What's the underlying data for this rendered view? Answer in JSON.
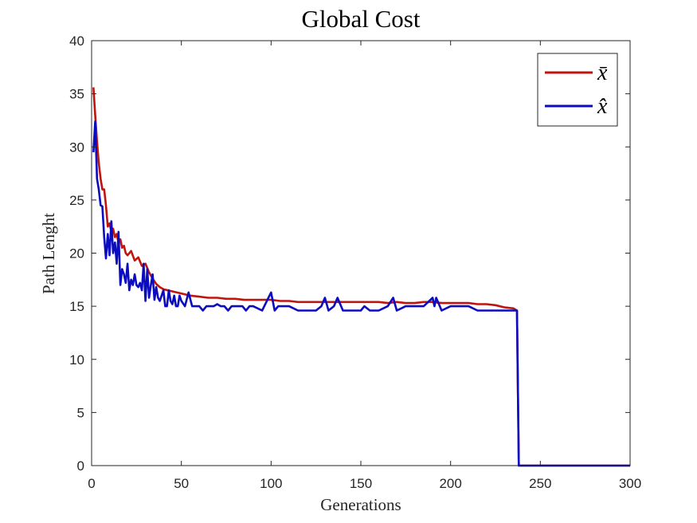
{
  "chart_data": {
    "type": "line",
    "title": "Global Cost",
    "xlabel": "Generations",
    "ylabel": "Path Lenght",
    "xlim": [
      0,
      300
    ],
    "ylim": [
      0,
      40
    ],
    "xticks": [
      0,
      50,
      100,
      150,
      200,
      250,
      300
    ],
    "yticks": [
      0,
      5,
      10,
      15,
      20,
      25,
      30,
      35,
      40
    ],
    "grid": false,
    "legend_position": "top-right",
    "series": [
      {
        "name": "x̄",
        "color": "#c0150f",
        "x": [
          1,
          2,
          3,
          4,
          5,
          6,
          7,
          8,
          9,
          10,
          11,
          12,
          13,
          14,
          15,
          16,
          17,
          18,
          19,
          20,
          22,
          24,
          26,
          28,
          30,
          32,
          34,
          36,
          38,
          40,
          45,
          50,
          55,
          60,
          65,
          70,
          75,
          80,
          85,
          90,
          95,
          100,
          105,
          110,
          115,
          120,
          125,
          130,
          135,
          140,
          145,
          150,
          155,
          160,
          165,
          170,
          175,
          180,
          185,
          190,
          195,
          200,
          205,
          210,
          215,
          220,
          225,
          230,
          235,
          237,
          238,
          300
        ],
        "y": [
          35.6,
          33.0,
          30.5,
          28.5,
          27.0,
          26.0,
          26.0,
          24.5,
          22.5,
          22.8,
          22.0,
          22.3,
          21.5,
          21.8,
          21.0,
          21.3,
          20.5,
          20.7,
          20.0,
          19.8,
          20.2,
          19.3,
          19.6,
          18.8,
          19.0,
          18.2,
          17.6,
          17.1,
          16.8,
          16.6,
          16.4,
          16.2,
          16.0,
          15.9,
          15.8,
          15.8,
          15.7,
          15.7,
          15.6,
          15.6,
          15.6,
          15.6,
          15.5,
          15.5,
          15.4,
          15.4,
          15.4,
          15.4,
          15.4,
          15.4,
          15.4,
          15.4,
          15.4,
          15.4,
          15.3,
          15.4,
          15.3,
          15.3,
          15.4,
          15.4,
          15.3,
          15.3,
          15.3,
          15.3,
          15.2,
          15.2,
          15.1,
          14.9,
          14.8,
          14.6,
          0,
          0
        ]
      },
      {
        "name": "x̂",
        "color": "#0b0bc0",
        "x": [
          1,
          2,
          3,
          4,
          5,
          6,
          7,
          8,
          9,
          10,
          11,
          12,
          13,
          14,
          15,
          16,
          17,
          18,
          19,
          20,
          21,
          22,
          23,
          24,
          25,
          26,
          27,
          28,
          29,
          30,
          31,
          32,
          33,
          34,
          35,
          36,
          37,
          38,
          39,
          40,
          41,
          42,
          43,
          44,
          45,
          46,
          47,
          48,
          49,
          50,
          52,
          54,
          56,
          58,
          60,
          62,
          64,
          66,
          68,
          70,
          72,
          74,
          76,
          78,
          80,
          82,
          84,
          86,
          88,
          90,
          95,
          100,
          102,
          104,
          110,
          115,
          120,
          125,
          128,
          130,
          132,
          135,
          137,
          140,
          145,
          150,
          152,
          155,
          160,
          165,
          168,
          170,
          175,
          180,
          185,
          190,
          191,
          192,
          195,
          200,
          205,
          210,
          215,
          220,
          225,
          230,
          235,
          237,
          238,
          300
        ],
        "y": [
          29.5,
          32.4,
          27.0,
          26.0,
          24.5,
          24.4,
          21.5,
          19.5,
          21.8,
          19.8,
          23.0,
          20.0,
          21.0,
          19.0,
          22.0,
          17.0,
          18.5,
          18.0,
          17.2,
          19.0,
          16.5,
          17.5,
          17.0,
          18.0,
          17.0,
          16.8,
          17.2,
          16.5,
          19.0,
          15.5,
          18.5,
          15.8,
          17.0,
          18.0,
          15.6,
          16.8,
          15.8,
          15.5,
          16.0,
          16.5,
          15.0,
          15.0,
          16.5,
          15.5,
          15.2,
          16.0,
          15.0,
          15.0,
          16.0,
          15.5,
          15.0,
          16.3,
          15.0,
          15.0,
          15.0,
          14.6,
          15.0,
          15.0,
          15.0,
          15.2,
          15.0,
          15.0,
          14.6,
          15.0,
          15.0,
          15.0,
          15.0,
          14.6,
          15.0,
          15.0,
          14.6,
          16.3,
          14.6,
          15.0,
          15.0,
          14.6,
          14.6,
          14.6,
          15.0,
          15.8,
          14.6,
          15.0,
          15.8,
          14.6,
          14.6,
          14.6,
          15.0,
          14.6,
          14.6,
          15.0,
          15.8,
          14.6,
          15.0,
          15.0,
          15.0,
          15.8,
          15.0,
          15.8,
          14.6,
          15.0,
          15.0,
          15.0,
          14.6,
          14.6,
          14.6,
          14.6,
          14.6,
          14.6,
          0,
          0
        ]
      }
    ]
  }
}
